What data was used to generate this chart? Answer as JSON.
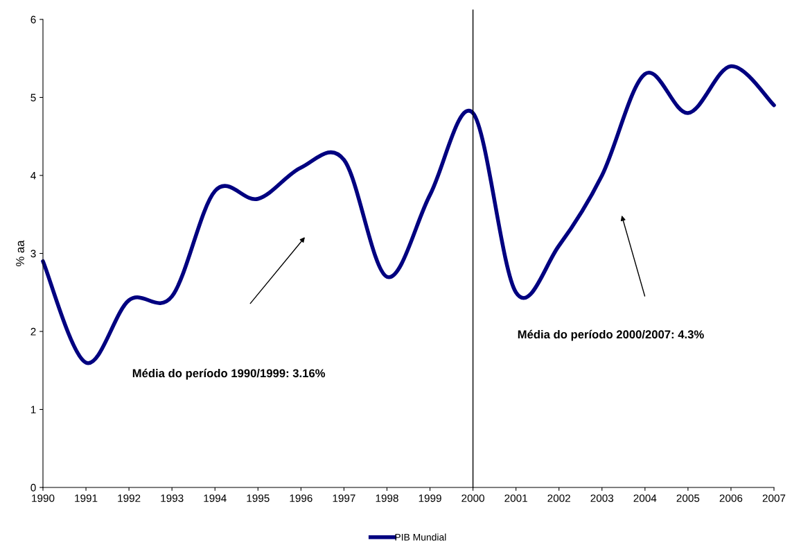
{
  "chart_data": {
    "type": "line",
    "ylabel": "% aa",
    "x": [
      1990,
      1991,
      1992,
      1993,
      1994,
      1995,
      1996,
      1997,
      1998,
      1999,
      2000,
      2001,
      2002,
      2003,
      2004,
      2005,
      2006,
      2007
    ],
    "series": [
      {
        "name": "PIB Mundial",
        "color": "#000080",
        "values": [
          2.9,
          1.6,
          2.4,
          2.45,
          3.8,
          3.7,
          4.1,
          4.2,
          2.7,
          3.75,
          4.8,
          2.5,
          3.1,
          4.0,
          5.3,
          4.8,
          5.4,
          4.9
        ]
      }
    ],
    "xlim": [
      1990,
      2007
    ],
    "xticks": [
      1990,
      1991,
      1992,
      1993,
      1994,
      1995,
      1996,
      1997,
      1998,
      1999,
      2000,
      2001,
      2002,
      2003,
      2004,
      2005,
      2006,
      2007
    ],
    "ylim": [
      0,
      6
    ],
    "yticks": [
      0,
      1,
      2,
      3,
      4,
      5,
      6
    ],
    "ref_lines": [
      {
        "axis": "x",
        "value": 2000,
        "color": "#000000"
      }
    ],
    "annotations": [
      "Média do período 1990/1999: 3.16%",
      "Média do período 2000/2007: 4.3%"
    ],
    "grid": false,
    "legend": "bottom",
    "marker": "none",
    "line_style": "solid"
  }
}
